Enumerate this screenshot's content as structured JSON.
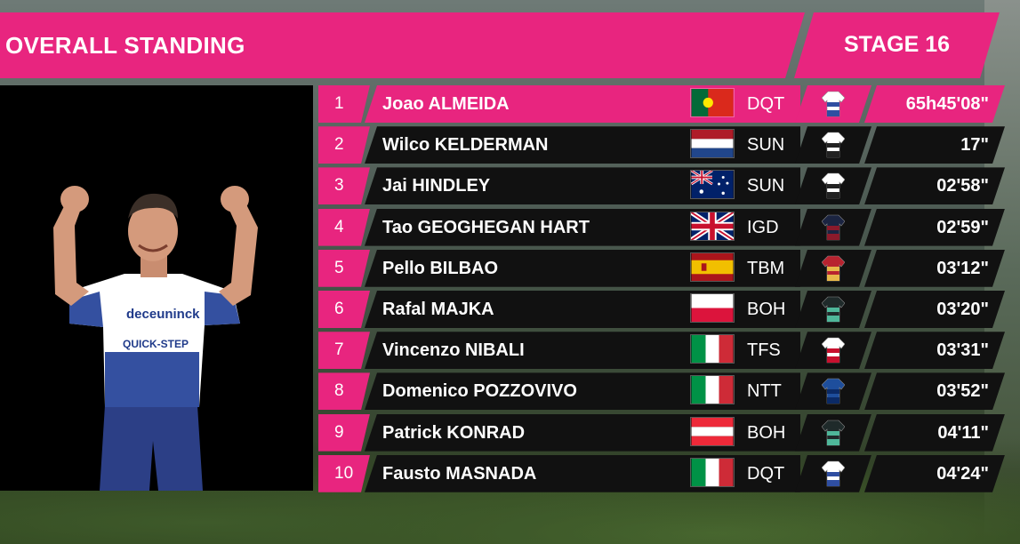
{
  "header": {
    "title": "OVERALL STANDING",
    "stage": "STAGE 16"
  },
  "rider": {
    "jersey_text": "deceuninck",
    "jersey_text_2": "QUICK-STEP"
  },
  "standings": [
    {
      "pos": "1",
      "name": "Joao ALMEIDA",
      "flag": "portugal",
      "team": "DQT",
      "jersey": "dqt",
      "time": "65h45'08\""
    },
    {
      "pos": "2",
      "name": "Wilco KELDERMAN",
      "flag": "netherlands",
      "team": "SUN",
      "jersey": "sun",
      "time": "17\""
    },
    {
      "pos": "3",
      "name": "Jai HINDLEY",
      "flag": "australia",
      "team": "SUN",
      "jersey": "sun",
      "time": "02'58\""
    },
    {
      "pos": "4",
      "name": "Tao GEOGHEGAN HART",
      "flag": "united-kingdom",
      "team": "IGD",
      "jersey": "igd",
      "time": "02'59\""
    },
    {
      "pos": "5",
      "name": "Pello BILBAO",
      "flag": "spain",
      "team": "TBM",
      "jersey": "tbm",
      "time": "03'12\""
    },
    {
      "pos": "6",
      "name": "Rafal MAJKA",
      "flag": "poland",
      "team": "BOH",
      "jersey": "boh",
      "time": "03'20\""
    },
    {
      "pos": "7",
      "name": "Vincenzo NIBALI",
      "flag": "italy",
      "team": "TFS",
      "jersey": "tfs",
      "time": "03'31\""
    },
    {
      "pos": "8",
      "name": "Domenico POZZOVIVO",
      "flag": "italy",
      "team": "NTT",
      "jersey": "ntt",
      "time": "03'52\""
    },
    {
      "pos": "9",
      "name": "Patrick KONRAD",
      "flag": "austria",
      "team": "BOH",
      "jersey": "boh",
      "time": "04'11\""
    },
    {
      "pos": "10",
      "name": "Fausto MASNADA",
      "flag": "italy",
      "team": "DQT",
      "jersey": "dqt",
      "time": "04'24\""
    }
  ],
  "colors": {
    "accent": "#e8257f",
    "row_bg": "#111111"
  }
}
